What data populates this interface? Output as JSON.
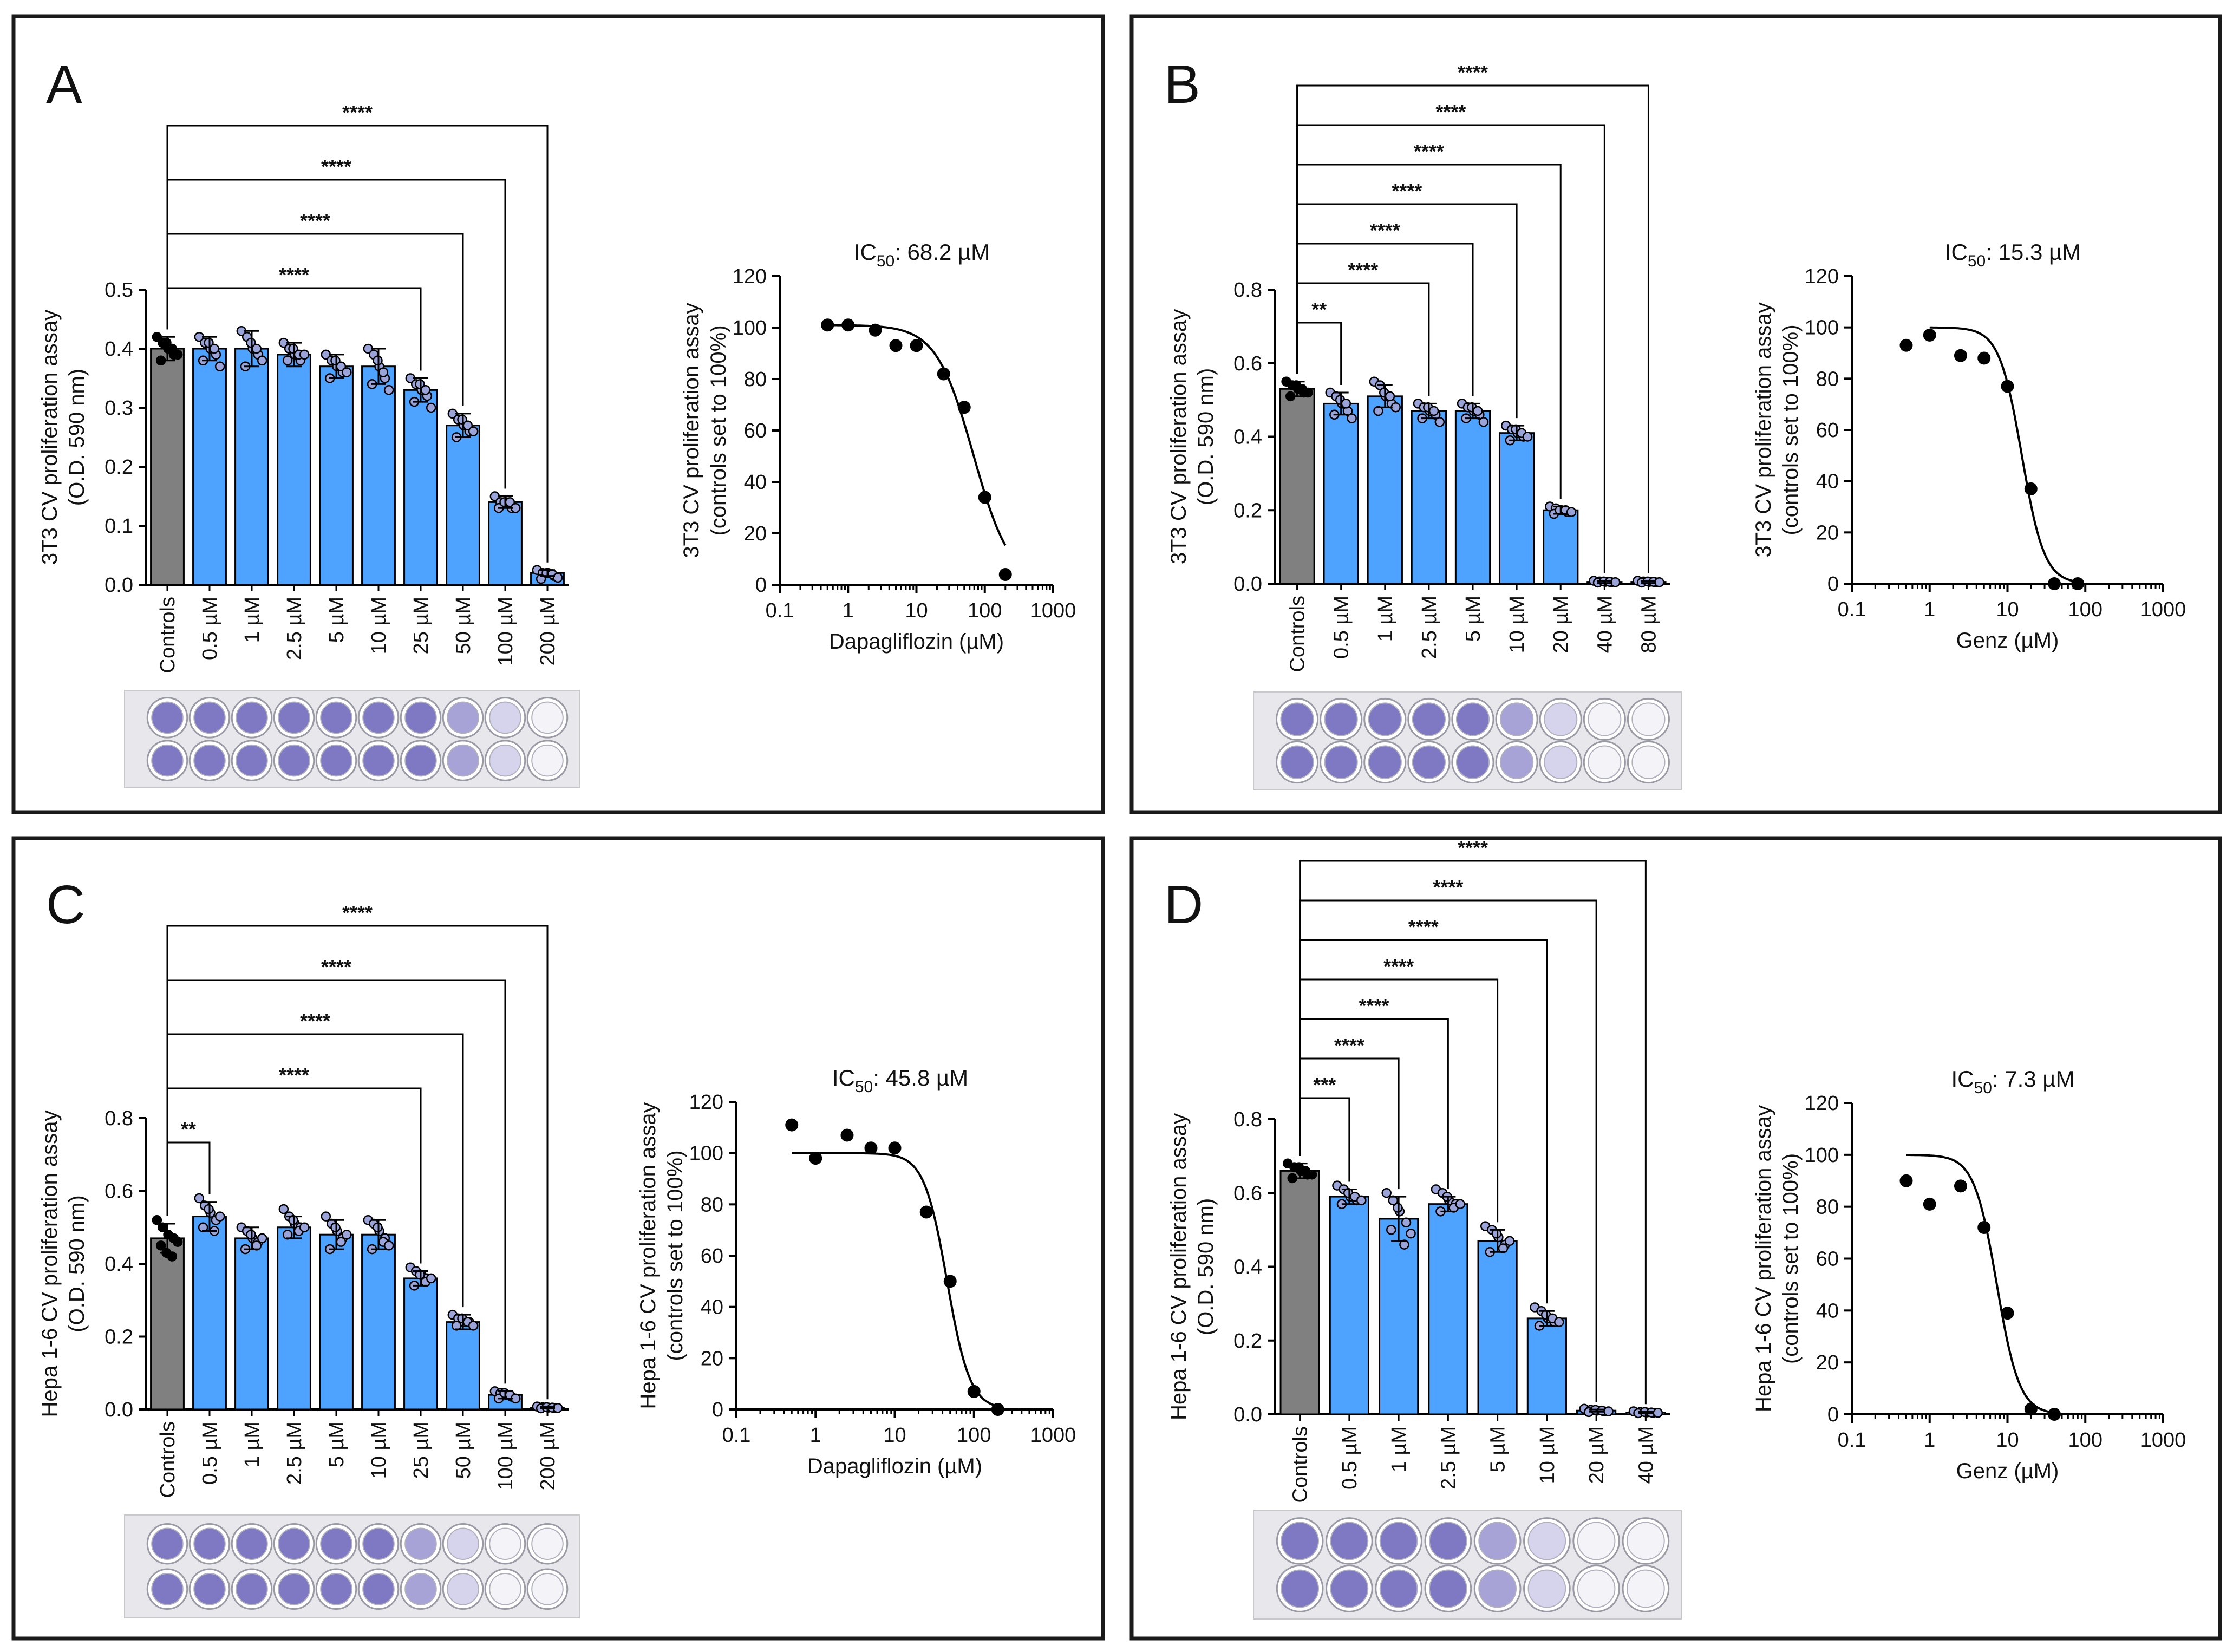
{
  "colors": {
    "control_bar": "#808080",
    "treatment_bar": "#4da3ff",
    "dot_fill": "#9aa4d8",
    "control_dot": "#000000",
    "curve": "#000000",
    "well_stain_strong": "#8a82c8",
    "well_empty": "#f2f2f6"
  },
  "chart_data": [
    {
      "panel": "A",
      "type": "bar",
      "ylabel_line1": "3T3 CV proliferation assay",
      "ylabel_line2": "(O.D. 590 nm)",
      "categories": [
        "Controls",
        "0.5 µM",
        "1 µM",
        "2.5 µM",
        "5 µM",
        "10 µM",
        "25 µM",
        "50 µM",
        "100 µM",
        "200 µM"
      ],
      "values": [
        0.4,
        0.4,
        0.4,
        0.39,
        0.37,
        0.37,
        0.33,
        0.27,
        0.14,
        0.02
      ],
      "errors": [
        0.02,
        0.02,
        0.03,
        0.02,
        0.02,
        0.03,
        0.02,
        0.02,
        0.01,
        0.005
      ],
      "points": [
        [
          0.42,
          0.41,
          0.4,
          0.39,
          0.38,
          0.41,
          0.4,
          0.39
        ],
        [
          0.42,
          0.41,
          0.4,
          0.39,
          0.38,
          0.41,
          0.4,
          0.37
        ],
        [
          0.43,
          0.42,
          0.4,
          0.39,
          0.37,
          0.41,
          0.4,
          0.38
        ],
        [
          0.41,
          0.4,
          0.39,
          0.38,
          0.38,
          0.4,
          0.39,
          0.39
        ],
        [
          0.39,
          0.38,
          0.37,
          0.36,
          0.35,
          0.38,
          0.37,
          0.36
        ],
        [
          0.4,
          0.39,
          0.37,
          0.35,
          0.34,
          0.38,
          0.36,
          0.33
        ],
        [
          0.35,
          0.34,
          0.33,
          0.32,
          0.31,
          0.34,
          0.33,
          0.3
        ],
        [
          0.29,
          0.28,
          0.27,
          0.26,
          0.25,
          0.28,
          0.27,
          0.26
        ],
        [
          0.15,
          0.14,
          0.14,
          0.13,
          0.13,
          0.14,
          0.14,
          0.13
        ],
        [
          0.025,
          0.02,
          0.02,
          0.015,
          0.01,
          0.02,
          0.018,
          0.012
        ]
      ],
      "ylim": [
        0,
        0.5
      ],
      "yticks": [
        "0.0",
        "0.1",
        "0.2",
        "0.3",
        "0.4",
        "0.5"
      ],
      "comparisons": [
        {
          "to": 6,
          "label": "****"
        },
        {
          "to": 7,
          "label": "****"
        },
        {
          "to": 8,
          "label": "****"
        },
        {
          "to": 9,
          "label": "****"
        }
      ],
      "plate_wells": [
        "strong",
        "strong",
        "strong",
        "strong",
        "strong",
        "strong",
        "strong",
        "medium",
        "light",
        "empty"
      ],
      "dose_response": {
        "title_prefix": "IC",
        "title_sub": "50",
        "title_value": ": 68.2 µM",
        "ylabel_line1": "3T3 CV proliferation assay",
        "ylabel_line2": "(controls set to 100%)",
        "xlabel": "Dapagliflozin (µM)",
        "x": [
          0.5,
          1,
          2.5,
          5,
          10,
          25,
          50,
          100,
          200
        ],
        "y": [
          101,
          101,
          99,
          93,
          93,
          82,
          69,
          34,
          4
        ],
        "ic50": 68.2,
        "hill": 1.6,
        "top": 101,
        "curve_range": [
          0.5,
          200
        ],
        "ylim": [
          0,
          120
        ],
        "yticks": [
          "0",
          "20",
          "40",
          "60",
          "80",
          "100",
          "120"
        ],
        "xticks": [
          "0.1",
          "1",
          "10",
          "100",
          "1000"
        ]
      }
    },
    {
      "panel": "B",
      "type": "bar",
      "ylabel_line1": "3T3 CV proliferation assay",
      "ylabel_line2": "(O.D. 590 nm)",
      "categories": [
        "Controls",
        "0.5 µM",
        "1 µM",
        "2.5 µM",
        "5 µM",
        "10 µM",
        "20 µM",
        "40 µM",
        "80 µM"
      ],
      "values": [
        0.53,
        0.49,
        0.51,
        0.47,
        0.47,
        0.41,
        0.2,
        0.005,
        0.005
      ],
      "errors": [
        0.02,
        0.03,
        0.03,
        0.02,
        0.02,
        0.02,
        0.01,
        0.003,
        0.003
      ],
      "points": [
        [
          0.55,
          0.54,
          0.53,
          0.52,
          0.51,
          0.54,
          0.53,
          0.52
        ],
        [
          0.52,
          0.51,
          0.49,
          0.47,
          0.46,
          0.5,
          0.49,
          0.45
        ],
        [
          0.55,
          0.54,
          0.51,
          0.49,
          0.47,
          0.52,
          0.51,
          0.48
        ],
        [
          0.49,
          0.48,
          0.47,
          0.46,
          0.45,
          0.48,
          0.47,
          0.44
        ],
        [
          0.49,
          0.48,
          0.47,
          0.46,
          0.45,
          0.48,
          0.47,
          0.44
        ],
        [
          0.43,
          0.42,
          0.41,
          0.4,
          0.39,
          0.42,
          0.41,
          0.4
        ],
        [
          0.21,
          0.205,
          0.2,
          0.195,
          0.19,
          0.2,
          0.2,
          0.195
        ],
        [
          0.008,
          0.006,
          0.005,
          0.004,
          0.003,
          0.006,
          0.005,
          0.004
        ],
        [
          0.008,
          0.006,
          0.005,
          0.004,
          0.003,
          0.006,
          0.005,
          0.004
        ]
      ],
      "ylim": [
        0,
        0.8
      ],
      "yticks": [
        "0.0",
        "0.2",
        "0.4",
        "0.6",
        "0.8"
      ],
      "comparisons": [
        {
          "to": 1,
          "label": "**"
        },
        {
          "to": 3,
          "label": "****"
        },
        {
          "to": 4,
          "label": "****"
        },
        {
          "to": 5,
          "label": "****"
        },
        {
          "to": 6,
          "label": "****"
        },
        {
          "to": 7,
          "label": "****"
        },
        {
          "to": 8,
          "label": "****"
        }
      ],
      "plate_wells": [
        "strong",
        "strong",
        "strong",
        "strong",
        "strong",
        "medium",
        "light",
        "empty",
        "empty"
      ],
      "dose_response": {
        "title_prefix": "IC",
        "title_sub": "50",
        "title_value": ": 15.3 µM",
        "ylabel_line1": "3T3 CV proliferation assay",
        "ylabel_line2": "(controls set to 100%)",
        "xlabel": "Genz (µM)",
        "x": [
          0.5,
          1,
          2.5,
          5,
          10,
          20,
          40,
          80
        ],
        "y": [
          93,
          97,
          89,
          88,
          77,
          37,
          0,
          0
        ],
        "ic50": 15.3,
        "hill": 3.0,
        "top": 100,
        "curve_range": [
          1,
          80
        ],
        "ylim": [
          0,
          120
        ],
        "yticks": [
          "0",
          "20",
          "40",
          "60",
          "80",
          "100",
          "120"
        ],
        "xticks": [
          "0.1",
          "1",
          "10",
          "100",
          "1000"
        ]
      }
    },
    {
      "panel": "C",
      "type": "bar",
      "ylabel_line1": "Hepa 1-6 CV proliferation assay",
      "ylabel_line2": "(O.D. 590 nm)",
      "categories": [
        "Controls",
        "0.5 µM",
        "1 µM",
        "2.5 µM",
        "5 µM",
        "10 µM",
        "25 µM",
        "50 µM",
        "100 µM",
        "200 µM"
      ],
      "values": [
        0.47,
        0.53,
        0.47,
        0.5,
        0.48,
        0.48,
        0.36,
        0.24,
        0.04,
        0.005
      ],
      "errors": [
        0.04,
        0.04,
        0.03,
        0.03,
        0.04,
        0.04,
        0.02,
        0.02,
        0.01,
        0.002
      ],
      "points": [
        [
          0.52,
          0.5,
          0.48,
          0.47,
          0.45,
          0.43,
          0.42,
          0.46
        ],
        [
          0.58,
          0.56,
          0.54,
          0.52,
          0.5,
          0.55,
          0.49,
          0.53
        ],
        [
          0.5,
          0.49,
          0.47,
          0.46,
          0.44,
          0.48,
          0.45,
          0.47
        ],
        [
          0.55,
          0.53,
          0.51,
          0.5,
          0.48,
          0.52,
          0.49,
          0.5
        ],
        [
          0.53,
          0.51,
          0.49,
          0.47,
          0.44,
          0.5,
          0.46,
          0.48
        ],
        [
          0.52,
          0.51,
          0.49,
          0.47,
          0.44,
          0.5,
          0.46,
          0.45
        ],
        [
          0.39,
          0.38,
          0.37,
          0.36,
          0.34,
          0.37,
          0.35,
          0.36
        ],
        [
          0.26,
          0.25,
          0.24,
          0.24,
          0.23,
          0.25,
          0.24,
          0.23
        ],
        [
          0.05,
          0.045,
          0.04,
          0.035,
          0.03,
          0.045,
          0.04,
          0.03
        ],
        [
          0.008,
          0.006,
          0.005,
          0.004,
          0.003,
          0.006,
          0.005,
          0.004
        ]
      ],
      "ylim": [
        0,
        0.8
      ],
      "yticks": [
        "0.0",
        "0.2",
        "0.4",
        "0.6",
        "0.8"
      ],
      "comparisons": [
        {
          "to": 1,
          "label": "**"
        },
        {
          "to": 6,
          "label": "****"
        },
        {
          "to": 7,
          "label": "****"
        },
        {
          "to": 8,
          "label": "****"
        },
        {
          "to": 9,
          "label": "****"
        }
      ],
      "plate_wells": [
        "strong",
        "strong",
        "strong",
        "strong",
        "strong",
        "strong",
        "medium",
        "light",
        "empty",
        "empty"
      ],
      "dose_response": {
        "title_prefix": "IC",
        "title_sub": "50",
        "title_value": ": 45.8 µM",
        "ylabel_line1": "Hepa 1-6 CV proliferation assay",
        "ylabel_line2": "(controls set to 100%)",
        "xlabel": "Dapagliflozin (µM)",
        "x": [
          0.5,
          1,
          2.5,
          5,
          10,
          25,
          50,
          100,
          200
        ],
        "y": [
          111,
          98,
          107,
          102,
          102,
          77,
          50,
          7,
          0
        ],
        "ic50": 45.8,
        "hill": 3.0,
        "top": 100,
        "curve_range": [
          0.5,
          200
        ],
        "ylim": [
          0,
          120
        ],
        "yticks": [
          "0",
          "20",
          "40",
          "60",
          "80",
          "100",
          "120"
        ],
        "xticks": [
          "0.1",
          "1",
          "10",
          "100",
          "1000"
        ]
      }
    },
    {
      "panel": "D",
      "type": "bar",
      "ylabel_line1": "Hepa 1-6 CV proliferation assay",
      "ylabel_line2": "(O.D. 590 nm)",
      "categories": [
        "Controls",
        "0.5 µM",
        "1 µM",
        "2.5 µM",
        "5 µM",
        "10 µM",
        "20 µM",
        "40 µM"
      ],
      "values": [
        0.66,
        0.59,
        0.53,
        0.57,
        0.47,
        0.26,
        0.01,
        0.005
      ],
      "errors": [
        0.02,
        0.02,
        0.06,
        0.02,
        0.03,
        0.02,
        0.003,
        0.002
      ],
      "points": [
        [
          0.68,
          0.67,
          0.66,
          0.65,
          0.64,
          0.67,
          0.66,
          0.65
        ],
        [
          0.62,
          0.61,
          0.59,
          0.58,
          0.57,
          0.6,
          0.59,
          0.58
        ],
        [
          0.6,
          0.58,
          0.55,
          0.52,
          0.5,
          0.56,
          0.46,
          0.49
        ],
        [
          0.61,
          0.6,
          0.58,
          0.57,
          0.55,
          0.59,
          0.56,
          0.57
        ],
        [
          0.51,
          0.5,
          0.48,
          0.46,
          0.44,
          0.49,
          0.45,
          0.47
        ],
        [
          0.29,
          0.28,
          0.26,
          0.25,
          0.24,
          0.27,
          0.26,
          0.25
        ],
        [
          0.015,
          0.012,
          0.01,
          0.008,
          0.006,
          0.012,
          0.01,
          0.008
        ],
        [
          0.008,
          0.006,
          0.005,
          0.004,
          0.003,
          0.006,
          0.005,
          0.004
        ]
      ],
      "ylim": [
        0,
        0.8
      ],
      "yticks": [
        "0.0",
        "0.2",
        "0.4",
        "0.6",
        "0.8"
      ],
      "comparisons": [
        {
          "to": 1,
          "label": "***"
        },
        {
          "to": 2,
          "label": "****"
        },
        {
          "to": 3,
          "label": "****"
        },
        {
          "to": 4,
          "label": "****"
        },
        {
          "to": 5,
          "label": "****"
        },
        {
          "to": 6,
          "label": "****"
        },
        {
          "to": 7,
          "label": "****"
        }
      ],
      "plate_wells": [
        "strong",
        "strong",
        "strong",
        "strong",
        "medium",
        "light",
        "empty",
        "empty"
      ],
      "dose_response": {
        "title_prefix": "IC",
        "title_sub": "50",
        "title_value": ": 7.3 µM",
        "ylabel_line1": "Hepa 1-6 CV proliferation assay",
        "ylabel_line2": "(controls set to 100%)",
        "xlabel": "Genz (µM)",
        "x": [
          0.5,
          1,
          2.5,
          5,
          10,
          20,
          40
        ],
        "y": [
          90,
          81,
          88,
          72,
          39,
          2,
          0
        ],
        "ic50": 7.3,
        "hill": 3.0,
        "top": 100,
        "curve_range": [
          0.5,
          40
        ],
        "ylim": [
          0,
          120
        ],
        "yticks": [
          "0",
          "20",
          "40",
          "60",
          "80",
          "100",
          "120"
        ],
        "xticks": [
          "0.1",
          "1",
          "10",
          "100",
          "1000"
        ]
      }
    }
  ]
}
